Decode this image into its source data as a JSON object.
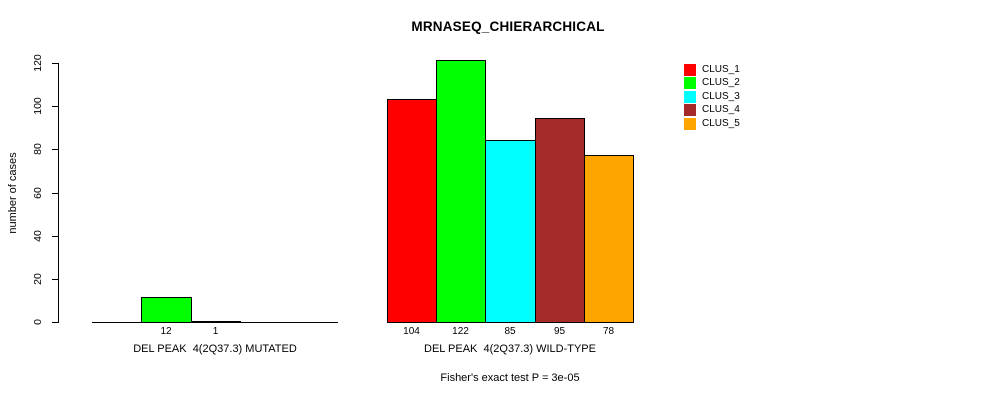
{
  "window": {
    "background": "#ffffff",
    "text_color": "#000000"
  },
  "chart_data": {
    "type": "bar",
    "title": "MRNASEQ_CHIERARCHICAL",
    "xlabel": "",
    "ylabel": "number of cases",
    "ylim": [
      0,
      120
    ],
    "yticks": [
      0,
      20,
      40,
      60,
      80,
      100,
      120
    ],
    "grid": false,
    "series_names": [
      "CLUS_1",
      "CLUS_2",
      "CLUS_3",
      "CLUS_4",
      "CLUS_5"
    ],
    "series_colors": [
      "#ff0000",
      "#00ff00",
      "#00ffff",
      "#a52a2a",
      "#ffa500"
    ],
    "groups": [
      {
        "label": "DEL PEAK  4(2Q37.3) MUTATED",
        "values": [
          0,
          12,
          1,
          0,
          0
        ],
        "bar_labels": [
          "",
          "12",
          "1",
          "",
          ""
        ]
      },
      {
        "label": "DEL PEAK  4(2Q37.3) WILD-TYPE",
        "values": [
          104,
          122,
          85,
          95,
          78
        ],
        "bar_labels": [
          "104",
          "122",
          "85",
          "95",
          "78"
        ]
      }
    ],
    "legend": {
      "position": "top-right",
      "entries": [
        {
          "label": "CLUS_1",
          "color": "#ff0000"
        },
        {
          "label": "CLUS_2",
          "color": "#00ff00"
        },
        {
          "label": "CLUS_3",
          "color": "#00ffff"
        },
        {
          "label": "CLUS_4",
          "color": "#a52a2a"
        },
        {
          "label": "CLUS_5",
          "color": "#ffa500"
        }
      ]
    },
    "annotation": "Fisher's exact test P = 3e-05"
  }
}
